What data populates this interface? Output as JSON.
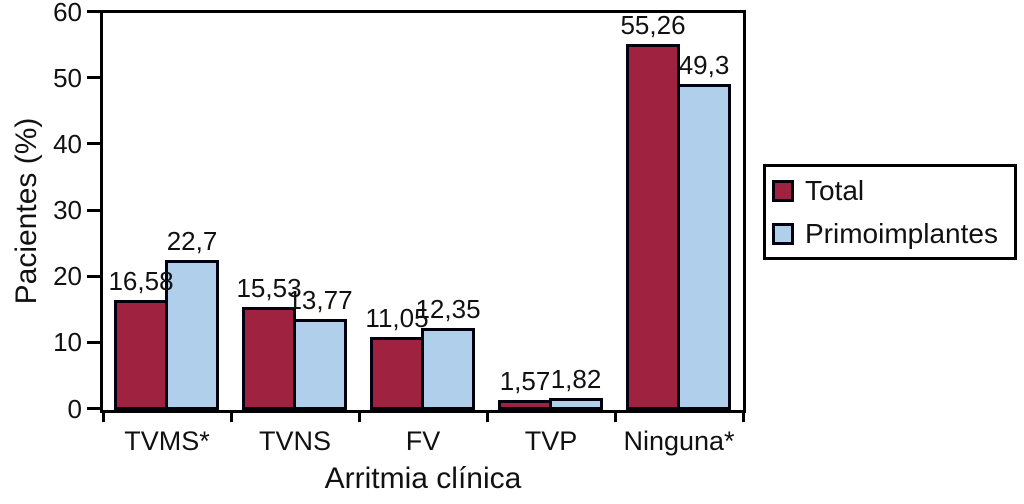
{
  "chart_data": {
    "type": "bar",
    "title": "",
    "xlabel": "Arritmia clínica",
    "ylabel": "Pacientes (%)",
    "categories": [
      "TVMS*",
      "TVNS",
      "FV",
      "TVP",
      "Ninguna*"
    ],
    "series": [
      {
        "name": "Total",
        "color": "#9f2240",
        "values": [
          16.58,
          15.53,
          11.05,
          1.57,
          55.26
        ],
        "labels": [
          "16,58",
          "15,53",
          "11,05",
          "1,57",
          "55,26"
        ]
      },
      {
        "name": "Primoimplantes",
        "color": "#afcfeb",
        "values": [
          22.7,
          13.77,
          12.35,
          1.82,
          49.3
        ],
        "labels": [
          "22,7",
          "13,77",
          "12,35",
          "1,82",
          "49,3"
        ]
      }
    ],
    "ylim": [
      0,
      60
    ],
    "yticks": [
      0,
      10,
      20,
      30,
      40,
      50,
      60
    ],
    "grid": false,
    "legend_position": "right",
    "bar_outline_color": "#000000",
    "axis_color": "#000000"
  }
}
